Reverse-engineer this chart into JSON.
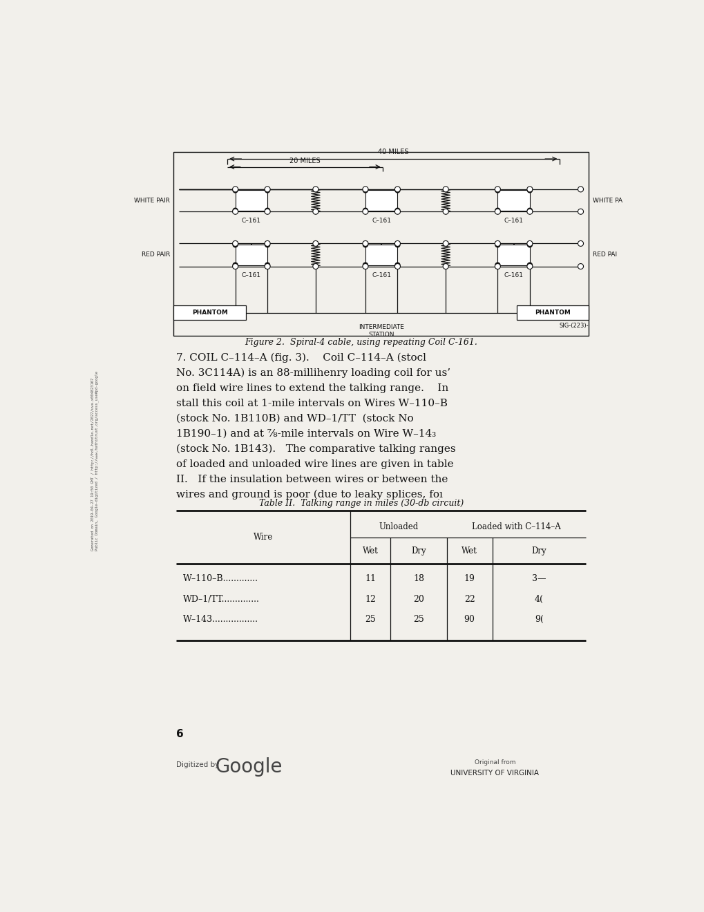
{
  "bg_color": "#f2f0eb",
  "page_width": 10.2,
  "page_height": 13.2,
  "figure_caption": "Figure 2.  Spiral-4 cable, using repeating Coil C-161.",
  "sig_text": "SIG-(223)-",
  "section_heading": "7. COIL C–114–A (fig. 3).",
  "body_lines": [
    "Coil C–114–A (stocl",
    "No. 3C114A) is an 88-millihenry loading coil for us’",
    "on field wire lines to extend the talking range.    In",
    "stall this coil at 1-mile intervals on Wires W–110–B",
    "(stock No. 1B110B) and WD–1/TT  (stock No",
    "1B190–1) and at ⅞-mile intervals on Wire W–14₃",
    "(stock No. 1B143).   The comparative talking ranges",
    "of loaded and unloaded wire lines are given in tablе",
    "II.   If the insulation between wires or between the",
    "wires and ground is poor (due to leaky splices, foı"
  ],
  "table_title": "Table II.  Talking range in miles (30-db circuit)",
  "wire_col_header": "Wire",
  "unloaded_header": "Unloaded",
  "loaded_header": "Loaded with C–114–A",
  "wet_dry": [
    "Wet",
    "Dry",
    "Wet",
    "Dry"
  ],
  "table_rows": [
    [
      "W–110–B.............",
      "11",
      "18",
      "19",
      "3—"
    ],
    [
      "WD–1/TT..............",
      "12",
      "20",
      "22",
      "4("
    ],
    [
      "W–143.................",
      "25",
      "25",
      "90",
      "9("
    ]
  ],
  "page_number": "6",
  "digitized_by": "Digitized by",
  "google_text": "Google",
  "original_from": "Original from",
  "university": "UNIVERSITY OF VIRGINIA",
  "side_text_line1": "Generated on 2019-04-27 19:50 GMT / http://hdl.handle.net/2027/uva.x004823167",
  "side_text_line2": "Public Domain, Google-digitized / http://www.hathitrust.org/access_use#pd-google"
}
